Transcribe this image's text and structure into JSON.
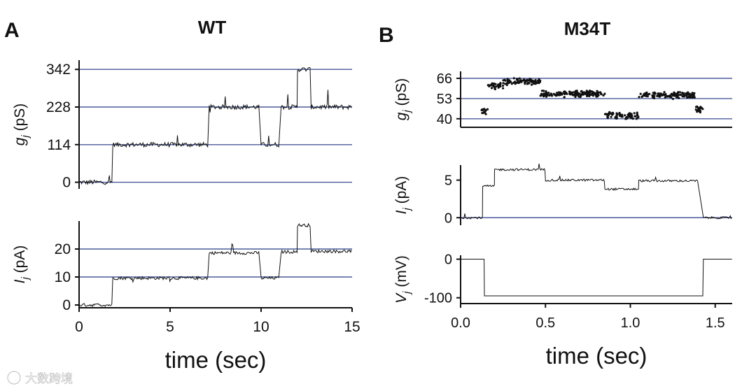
{
  "watermark": "大数跨境",
  "panels": [
    {
      "letter": "A",
      "title": "WT"
    },
    {
      "letter": "B",
      "title": "M34T"
    }
  ],
  "chart_data": [
    {
      "id": "A-top",
      "type": "line",
      "panel": "A",
      "title": "WT",
      "ylabel": {
        "base": "g",
        "sub": "j",
        "unit": " (pS)"
      },
      "xlim": [
        0,
        15
      ],
      "ylim": [
        -20,
        370
      ],
      "yticks": [
        "0",
        "114",
        "228",
        "342"
      ],
      "ytick_values": [
        0,
        114,
        228,
        342
      ],
      "gridlines": [
        0,
        114,
        228,
        342
      ],
      "segments": [
        [
          0,
          1.8,
          0
        ],
        [
          1.85,
          7.1,
          114
        ],
        [
          7.15,
          9.9,
          228
        ],
        [
          10.0,
          11.0,
          114
        ],
        [
          11.1,
          12.0,
          228
        ],
        [
          12.0,
          12.7,
          342
        ],
        [
          12.75,
          15,
          228
        ]
      ]
    },
    {
      "id": "A-bottom",
      "type": "line",
      "panel": "A",
      "ylabel": {
        "base": "I",
        "sub": "j",
        "unit": " (pA)"
      },
      "xlim": [
        0,
        15
      ],
      "ylim": [
        -1,
        30
      ],
      "yticks": [
        "0",
        "10",
        "20"
      ],
      "ytick_values": [
        0,
        10,
        20
      ],
      "gridlines": [
        10,
        20
      ],
      "xticks": [
        "0",
        "5",
        "10",
        "15"
      ],
      "xtick_values": [
        0,
        5,
        10,
        15
      ],
      "xlabel": "time (sec)",
      "segments": [
        [
          0,
          1.8,
          0
        ],
        [
          1.85,
          7.1,
          9.6
        ],
        [
          7.15,
          9.9,
          18.6
        ],
        [
          10.0,
          11.0,
          9.6
        ],
        [
          11.1,
          12.0,
          19.0
        ],
        [
          12.0,
          12.7,
          28.5
        ],
        [
          12.75,
          15,
          19.2
        ]
      ]
    },
    {
      "id": "B-top",
      "type": "scatter",
      "panel": "B",
      "title": "M34T",
      "ylabel": {
        "base": "g",
        "sub": "j",
        "unit": " (pS)"
      },
      "xlim": [
        0,
        1.6
      ],
      "ylim": [
        34.5,
        70.5
      ],
      "yticks": [
        "40",
        "53",
        "66"
      ],
      "ytick_values": [
        40,
        53,
        66
      ],
      "gridlines": [
        40,
        53,
        66
      ],
      "segments": [
        [
          0.12,
          0.16,
          45
        ],
        [
          0.16,
          0.25,
          61
        ],
        [
          0.25,
          0.47,
          64
        ],
        [
          0.47,
          0.85,
          56
        ],
        [
          0.85,
          1.05,
          42
        ],
        [
          1.05,
          1.38,
          55
        ],
        [
          1.38,
          1.43,
          46
        ]
      ]
    },
    {
      "id": "B-middle",
      "type": "line",
      "panel": "B",
      "ylabel": {
        "base": "I",
        "sub": "j",
        "unit": " (pA)"
      },
      "xlim": [
        0,
        1.6
      ],
      "ylim": [
        -1.0,
        7.0
      ],
      "yticks": [
        "0",
        "5"
      ],
      "ytick_values": [
        0,
        5
      ],
      "gridlines": [
        0
      ],
      "segments": [
        [
          0,
          0.13,
          0
        ],
        [
          0.13,
          0.2,
          4.2
        ],
        [
          0.2,
          0.5,
          6.4
        ],
        [
          0.5,
          0.85,
          5.0
        ],
        [
          0.85,
          1.05,
          3.8
        ],
        [
          1.05,
          1.4,
          4.9
        ],
        [
          1.43,
          1.6,
          0
        ]
      ]
    },
    {
      "id": "B-bottom",
      "type": "line",
      "panel": "B",
      "ylabel": {
        "base": "V",
        "sub": "j",
        "unit": " (mV)"
      },
      "xlim": [
        0,
        1.6
      ],
      "ylim": [
        -115,
        10
      ],
      "yticks": [
        "0",
        "-100"
      ],
      "ytick_values": [
        0,
        -100
      ],
      "gridlines": [],
      "xticks": [
        "0.0",
        "0.5",
        "1.0",
        "1.5"
      ],
      "xtick_values": [
        0,
        0.5,
        1.0,
        1.5
      ],
      "xlabel": "time (sec)",
      "segments": [
        [
          0,
          0.14,
          0
        ],
        [
          0.14,
          1.43,
          -95
        ],
        [
          1.43,
          1.6,
          0
        ]
      ]
    }
  ]
}
